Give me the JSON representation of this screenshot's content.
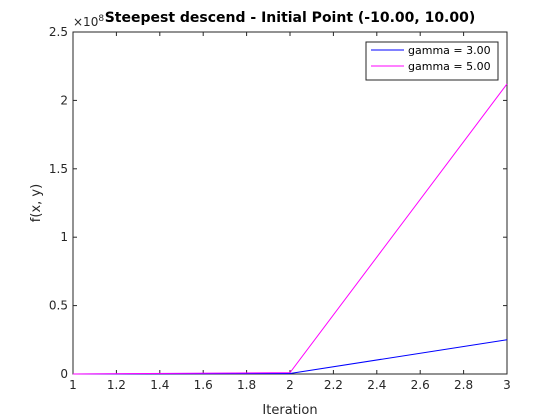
{
  "chart_data": {
    "type": "line",
    "title": "Steepest descend - Initial Point (-10.00, 10.00)",
    "xlabel": "Iteration",
    "ylabel": "f(x, y)",
    "xlim": [
      1,
      3
    ],
    "ylim": [
      0,
      250000000
    ],
    "x_ticks": [
      "1",
      "1.2",
      "1.4",
      "1.6",
      "1.8",
      "2",
      "2.2",
      "2.4",
      "2.6",
      "2.8",
      "3"
    ],
    "y_ticks": [
      "0",
      "0.5",
      "1",
      "1.5",
      "2",
      "2.5"
    ],
    "y_multiplier_base": "×10",
    "y_multiplier_exp": "8",
    "grid": false,
    "legend_position": "top-right",
    "x": [
      1,
      2,
      3
    ],
    "series": [
      {
        "name": "gamma = 3.00",
        "color": "#0000ff",
        "values": [
          500,
          400000,
          25000000
        ]
      },
      {
        "name": "gamma = 5.00",
        "color": "#ff00ff",
        "values": [
          500,
          1000000,
          212000000
        ]
      }
    ]
  }
}
